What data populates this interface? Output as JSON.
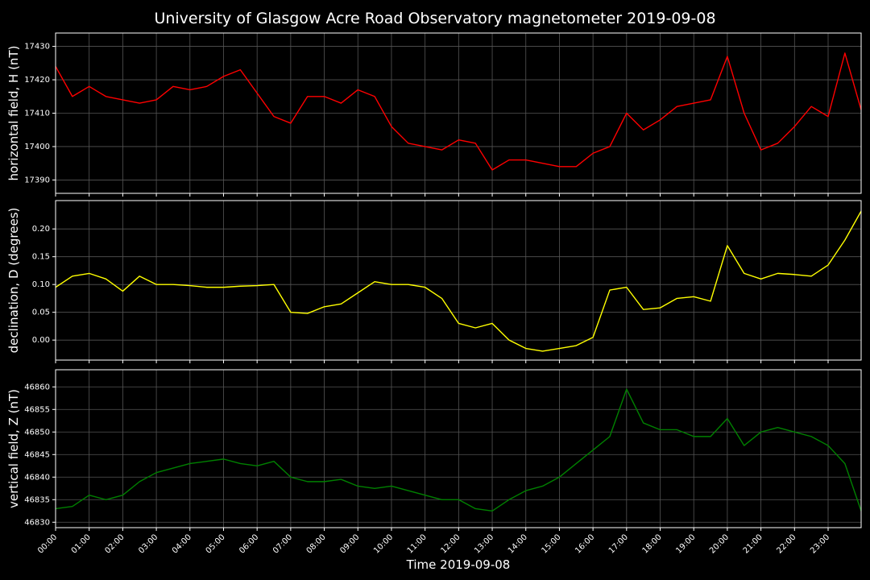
{
  "title": "University of Glasgow Acre Road Observatory magnetometer 2019-09-08",
  "chart_data": [
    {
      "type": "line",
      "ylabel": "horizontal field, H (nT)",
      "x": [
        "00:00",
        "00:30",
        "01:00",
        "01:30",
        "02:00",
        "02:30",
        "03:00",
        "03:30",
        "04:00",
        "04:30",
        "05:00",
        "05:30",
        "06:00",
        "06:30",
        "07:00",
        "07:30",
        "08:00",
        "08:30",
        "09:00",
        "09:30",
        "10:00",
        "10:30",
        "11:00",
        "11:30",
        "12:00",
        "12:30",
        "13:00",
        "13:30",
        "14:00",
        "14:30",
        "15:00",
        "15:30",
        "16:00",
        "16:30",
        "17:00",
        "17:30",
        "18:00",
        "18:30",
        "19:00",
        "19:30",
        "20:00",
        "20:30",
        "21:00",
        "21:30",
        "22:00",
        "22:30",
        "23:00",
        "23:30",
        "23:59"
      ],
      "series": [
        {
          "color": "#ff0000",
          "values": [
            17424,
            17415,
            17418,
            17415,
            17414,
            17413,
            17414,
            17418,
            17417,
            17418,
            17421,
            17423,
            17416,
            17409,
            17407,
            17415,
            17415,
            17413,
            17417,
            17415,
            17406,
            17401,
            17400,
            17399,
            17402,
            17401,
            17393,
            17396,
            17396,
            17395,
            17394,
            17394,
            17398,
            17400,
            17410,
            17405,
            17408,
            17412,
            17413,
            17414,
            17427,
            17410,
            17399,
            17401,
            17406,
            17412,
            17409,
            17428,
            17411
          ]
        }
      ],
      "xlim": [
        "00:00",
        "23:59"
      ],
      "ylim": [
        17386,
        17434
      ],
      "yticks": [
        17390,
        17400,
        17410,
        17420,
        17430
      ],
      "grid": true
    },
    {
      "type": "line",
      "ylabel": "declination, D (degrees)",
      "x": [
        "00:00",
        "00:30",
        "01:00",
        "01:30",
        "02:00",
        "02:30",
        "03:00",
        "03:30",
        "04:00",
        "04:30",
        "05:00",
        "05:30",
        "06:00",
        "06:30",
        "07:00",
        "07:30",
        "08:00",
        "08:30",
        "09:00",
        "09:30",
        "10:00",
        "10:30",
        "11:00",
        "11:30",
        "12:00",
        "12:30",
        "13:00",
        "13:30",
        "14:00",
        "14:30",
        "15:00",
        "15:30",
        "16:00",
        "16:30",
        "17:00",
        "17:30",
        "18:00",
        "18:30",
        "19:00",
        "19:30",
        "20:00",
        "20:30",
        "21:00",
        "21:30",
        "22:00",
        "22:30",
        "23:00",
        "23:30",
        "23:59"
      ],
      "series": [
        {
          "color": "#ffff00",
          "values": [
            0.095,
            0.115,
            0.12,
            0.11,
            0.088,
            0.115,
            0.1,
            0.1,
            0.098,
            0.095,
            0.095,
            0.097,
            0.098,
            0.1,
            0.05,
            0.048,
            0.06,
            0.065,
            0.085,
            0.105,
            0.1,
            0.1,
            0.095,
            0.075,
            0.03,
            0.022,
            0.03,
            0.0,
            -0.015,
            -0.02,
            -0.015,
            -0.01,
            0.005,
            0.09,
            0.095,
            0.055,
            0.058,
            0.075,
            0.078,
            0.07,
            0.17,
            0.12,
            0.11,
            0.12,
            0.118,
            0.115,
            0.135,
            0.18,
            0.232
          ]
        }
      ],
      "xlim": [
        "00:00",
        "23:59"
      ],
      "ylim": [
        -0.036,
        0.251
      ],
      "yticks": [
        {
          "value": 0,
          "label": "0.00"
        },
        0.05,
        {
          "value": 0.1,
          "label": "0.10"
        },
        0.15,
        {
          "value": 0.2,
          "label": "0.20"
        }
      ],
      "grid": true
    },
    {
      "type": "line",
      "ylabel": "vertical field, Z (nT)",
      "xlabel": "Time 2019-09-08",
      "x": [
        "00:00",
        "00:30",
        "01:00",
        "01:30",
        "02:00",
        "02:30",
        "03:00",
        "03:30",
        "04:00",
        "04:30",
        "05:00",
        "05:30",
        "06:00",
        "06:30",
        "07:00",
        "07:30",
        "08:00",
        "08:30",
        "09:00",
        "09:30",
        "10:00",
        "10:30",
        "11:00",
        "11:30",
        "12:00",
        "12:30",
        "13:00",
        "13:30",
        "14:00",
        "14:30",
        "15:00",
        "15:30",
        "16:00",
        "16:30",
        "17:00",
        "17:30",
        "18:00",
        "18:30",
        "19:00",
        "19:30",
        "20:00",
        "20:30",
        "21:00",
        "21:30",
        "22:00",
        "22:30",
        "23:00",
        "23:30",
        "23:59"
      ],
      "series": [
        {
          "color": "#008000",
          "values": [
            46833,
            46833.5,
            46836,
            46835,
            46836,
            46839,
            46841,
            46842,
            46843,
            46843.5,
            46844,
            46843,
            46842.5,
            46843.5,
            46840,
            46839,
            46839,
            46839.5,
            46838,
            46837.5,
            46838,
            46837,
            46836,
            46835,
            46835,
            46833,
            46832.5,
            46835,
            46837,
            46838,
            46840,
            46843,
            46846,
            46849,
            46859.5,
            46852,
            46850.5,
            46850.5,
            46849,
            46849,
            46853,
            46847,
            46850,
            46851,
            46850,
            46849,
            46847,
            46843,
            46832.5
          ]
        }
      ],
      "xlim": [
        "00:00",
        "23:59"
      ],
      "ylim": [
        46828.8,
        46863.8
      ],
      "yticks": [
        46830,
        46835,
        46840,
        46845,
        46850,
        46855,
        46860
      ],
      "xticks": [
        "00:00",
        "01:00",
        "02:00",
        "03:00",
        "04:00",
        "05:00",
        "06:00",
        "07:00",
        "08:00",
        "09:00",
        "10:00",
        "11:00",
        "12:00",
        "13:00",
        "14:00",
        "15:00",
        "16:00",
        "17:00",
        "18:00",
        "19:00",
        "20:00",
        "21:00",
        "22:00",
        "23:00"
      ],
      "grid": true
    }
  ]
}
